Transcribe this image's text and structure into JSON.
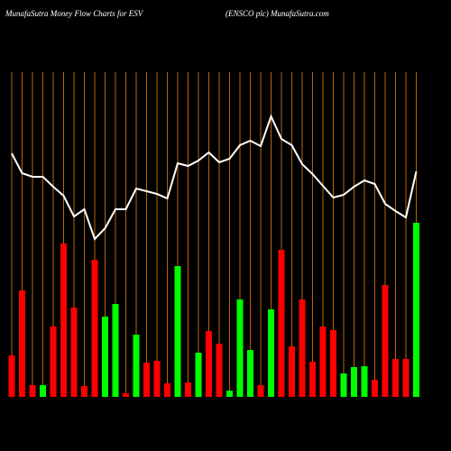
{
  "chart_data": {
    "type": "bar-line",
    "title": "MunafaSutra  Money Flow  Charts for ESV",
    "subtitle": "(ENSCO plc) MunafaSutra.com",
    "ylim": [
      0,
      360
    ],
    "grid_color": "#b8650a",
    "series": [
      {
        "type": "bar",
        "values": [
          46,
          118,
          13,
          13,
          78,
          170,
          99,
          12,
          152,
          89,
          103,
          4,
          69,
          38,
          40,
          15,
          145,
          16,
          49,
          73,
          59,
          7,
          108,
          52,
          13,
          97,
          163,
          56,
          108,
          39,
          78,
          74,
          26,
          33,
          34,
          19,
          124,
          42,
          42,
          193
        ],
        "colors": [
          "#ff0000",
          "#ff0000",
          "#ff0000",
          "#00ff00",
          "#ff0000",
          "#ff0000",
          "#ff0000",
          "#ff0000",
          "#ff0000",
          "#00ff00",
          "#00ff00",
          "#ff0000",
          "#00ff00",
          "#ff0000",
          "#ff0000",
          "#ff0000",
          "#00ff00",
          "#ff0000",
          "#00ff00",
          "#ff0000",
          "#ff0000",
          "#00ff00",
          "#00ff00",
          "#00ff00",
          "#ff0000",
          "#00ff00",
          "#ff0000",
          "#ff0000",
          "#ff0000",
          "#ff0000",
          "#ff0000",
          "#ff0000",
          "#00ff00",
          "#00ff00",
          "#00ff00",
          "#ff0000",
          "#ff0000",
          "#ff0000",
          "#ff0000",
          "#00ff00"
        ]
      },
      {
        "type": "line",
        "color": "#ffffff",
        "values": [
          270,
          248,
          244,
          244,
          233,
          223,
          200,
          208,
          175,
          187,
          208,
          208,
          231,
          228,
          225,
          220,
          259,
          256,
          262,
          271,
          260,
          264,
          279,
          284,
          278,
          311,
          286,
          279,
          258,
          247,
          234,
          221,
          224,
          233,
          240,
          236,
          214,
          206,
          199,
          250
        ]
      }
    ]
  }
}
